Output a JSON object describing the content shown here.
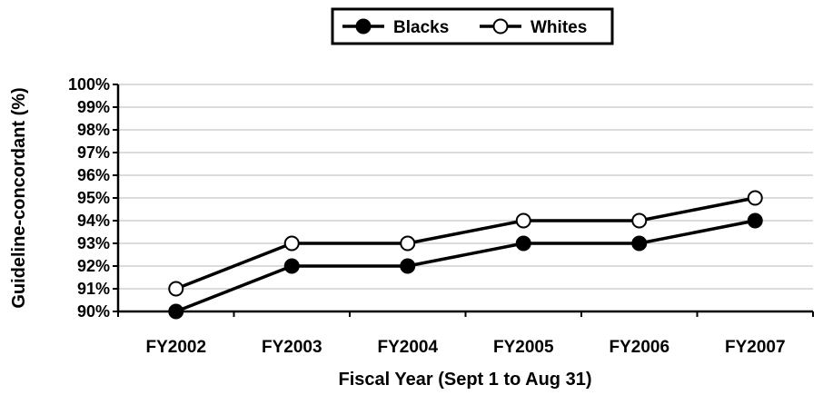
{
  "chart_data": {
    "type": "line",
    "title": "",
    "xlabel": "Fiscal Year (Sept 1 to Aug 31)",
    "ylabel": "Guideline-concordant (%)",
    "categories": [
      "FY2002",
      "FY2003",
      "FY2004",
      "FY2005",
      "FY2006",
      "FY2007"
    ],
    "ylim": [
      90,
      100
    ],
    "yticks": [
      "90%",
      "91%",
      "92%",
      "93%",
      "94%",
      "95%",
      "96%",
      "97%",
      "98%",
      "99%",
      "100%"
    ],
    "grid": true,
    "legend_position": "top-center",
    "series": [
      {
        "name": "Blacks",
        "values": [
          90,
          92,
          92,
          93,
          93,
          94
        ],
        "marker": "filled-circle",
        "color": "#000000"
      },
      {
        "name": "Whites",
        "values": [
          91,
          93,
          93,
          94,
          94,
          95
        ],
        "marker": "open-circle",
        "color": "#000000"
      }
    ]
  }
}
